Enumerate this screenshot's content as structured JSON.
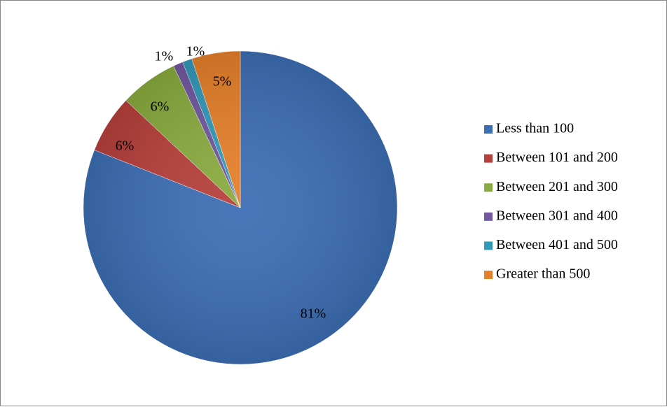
{
  "chart_data": {
    "type": "pie",
    "categories": [
      "Less than 100",
      "Between 101 and 200",
      "Between 201 and 300",
      "Between 301 and 400",
      "Between 401 and 500",
      "Greater than 500"
    ],
    "values": [
      81,
      6,
      6,
      1,
      1,
      5
    ],
    "data_labels": [
      "81%",
      "6%",
      "6%",
      "1%",
      "1%",
      "5%"
    ],
    "colors": [
      "#3D6EB4",
      "#B7403C",
      "#8AAB3F",
      "#7158A0",
      "#3399B9",
      "#E5802A"
    ],
    "legend_position": "right",
    "start_angle": "12 o'clock",
    "direction": "clockwise"
  }
}
